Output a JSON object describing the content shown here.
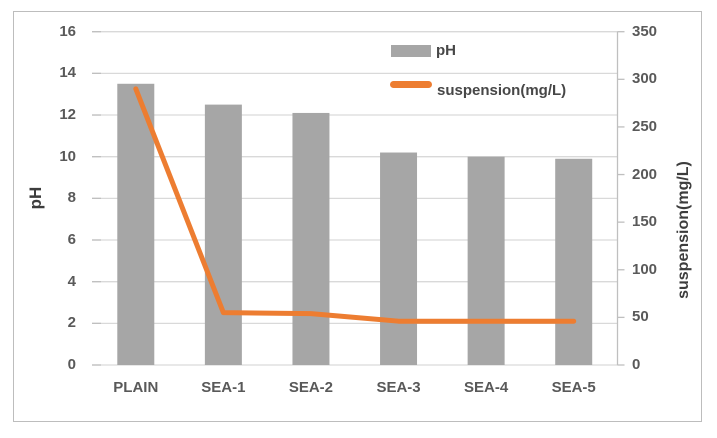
{
  "chart_data": {
    "type": "combo-bar-line",
    "title": "",
    "categories": [
      "PLAIN",
      "SEA-1",
      "SEA-2",
      "SEA-3",
      "SEA-4",
      "SEA-5"
    ],
    "series": [
      {
        "name": "pH",
        "type": "bar",
        "axis": "left",
        "color": "#A6A6A6",
        "values": [
          13.5,
          12.5,
          12.1,
          10.2,
          10.0,
          9.9
        ]
      },
      {
        "name": "suspension(mg/L)",
        "type": "line",
        "axis": "right",
        "color": "#ED7D31",
        "values": [
          290,
          55,
          54,
          46,
          46,
          46
        ]
      }
    ],
    "left_axis": {
      "title": "pH",
      "min": 0,
      "max": 16,
      "step": 2,
      "tick_labels": [
        "0",
        "2",
        "4",
        "6",
        "8",
        "10",
        "12",
        "14",
        "16"
      ]
    },
    "right_axis": {
      "title": "suspension(mg/L)",
      "min": 0,
      "max": 350,
      "step": 50,
      "tick_labels": [
        "0",
        "50",
        "100",
        "150",
        "200",
        "250",
        "300",
        "350"
      ]
    },
    "legend": {
      "position": "top-center",
      "entries": [
        "pH",
        "suspension(mg/L)"
      ]
    },
    "grid": true
  },
  "styles": {
    "gridline_color": "#D9D9D9",
    "axis_line_color": "#BFBFBF",
    "tick_label_color": "#595959",
    "axis_title_color": "#3D3D3D"
  }
}
